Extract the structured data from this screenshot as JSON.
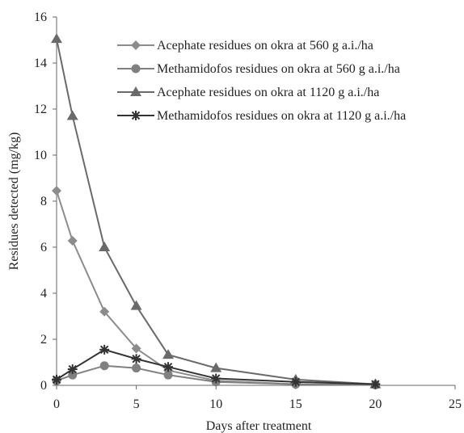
{
  "chart_data": {
    "type": "line",
    "title": "",
    "xlabel": "Days after  treatment",
    "ylabel": "Residues detected  (mg/kg)",
    "xlim": [
      0,
      25
    ],
    "ylim": [
      0,
      16
    ],
    "xticks": [
      0,
      5,
      10,
      15,
      20,
      25
    ],
    "yticks": [
      0,
      2,
      4,
      6,
      8,
      10,
      12,
      14,
      16
    ],
    "grid": false,
    "legend_position": "top-right",
    "series": [
      {
        "name": "Acephate residues on okra at 560 g a.i./ha",
        "marker": "diamond",
        "color": "#8c8c8c",
        "x": [
          0,
          1,
          3,
          5,
          7,
          10,
          15,
          20
        ],
        "y": [
          8.45,
          6.28,
          3.2,
          1.6,
          0.65,
          0.2,
          0.05,
          0.02
        ]
      },
      {
        "name": "Methamidofos residues on okra at 560 g a.i./ha",
        "marker": "circle",
        "color": "#808080",
        "x": [
          0,
          1,
          3,
          5,
          7,
          10,
          15,
          20
        ],
        "y": [
          0.2,
          0.45,
          0.85,
          0.75,
          0.45,
          0.15,
          0.05,
          0.02
        ]
      },
      {
        "name": "Acephate residues on okra at 1120 g a.i./ha",
        "marker": "triangle",
        "color": "#6a6a6a",
        "x": [
          0,
          1,
          3,
          5,
          7,
          10,
          15,
          20
        ],
        "y": [
          15.05,
          11.7,
          6.0,
          3.45,
          1.33,
          0.75,
          0.25,
          0.05
        ]
      },
      {
        "name": "Methamidofos residues on okra at 1120 g a.i./ha",
        "marker": "star",
        "color": "#333333",
        "x": [
          0,
          1,
          3,
          5,
          7,
          10,
          15,
          20
        ],
        "y": [
          0.25,
          0.7,
          1.55,
          1.15,
          0.8,
          0.3,
          0.15,
          0.05
        ]
      }
    ]
  }
}
